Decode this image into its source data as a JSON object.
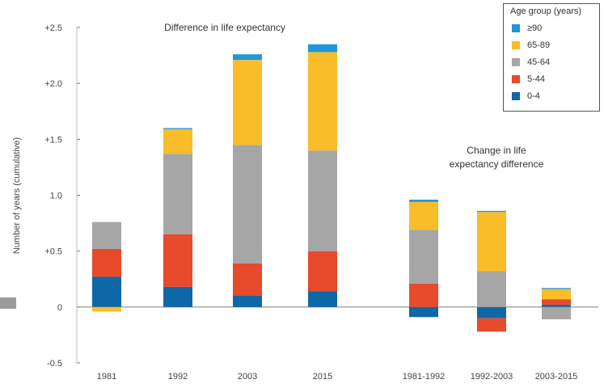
{
  "chart_data": {
    "type": "bar",
    "stacked": true,
    "annotations": [
      "Difference in life expectancy",
      "Change in life expectancy difference"
    ],
    "ylabel": "Number of years (cumulative)",
    "ylim": [
      -0.5,
      2.5
    ],
    "yticks": [
      -0.5,
      0,
      0.5,
      1.0,
      1.5,
      2.0,
      2.5
    ],
    "ytick_labels": [
      "-0.5",
      "0",
      "+0.5",
      "1.0",
      "+1.5",
      "+2.0",
      "+2.5"
    ],
    "categories": [
      "1981",
      "1992",
      "2003",
      "2015",
      "1981-1992",
      "1992-2003",
      "2003-2015"
    ],
    "series": [
      {
        "name": "0-4",
        "color": "#0e67a7",
        "values": [
          0.27,
          0.18,
          0.1,
          0.14,
          -0.09,
          -0.1,
          0.02
        ]
      },
      {
        "name": "5-44",
        "color": "#e84a2c",
        "values": [
          0.25,
          0.47,
          0.29,
          0.36,
          0.21,
          -0.12,
          0.05
        ]
      },
      {
        "name": "45-64",
        "color": "#a6a6a6",
        "values": [
          0.24,
          0.72,
          1.06,
          0.9,
          0.48,
          0.32,
          -0.11
        ]
      },
      {
        "name": "65-89",
        "color": "#f9bd2a",
        "values": [
          -0.04,
          0.22,
          0.76,
          0.88,
          0.25,
          0.53,
          0.09
        ]
      },
      {
        "name": "≥90",
        "color": "#2196d8",
        "values": [
          0.0,
          0.01,
          0.05,
          0.07,
          0.02,
          0.01,
          0.01
        ]
      }
    ],
    "legend": {
      "title": "Age group (years)",
      "position": "top-right"
    },
    "grid": false
  }
}
